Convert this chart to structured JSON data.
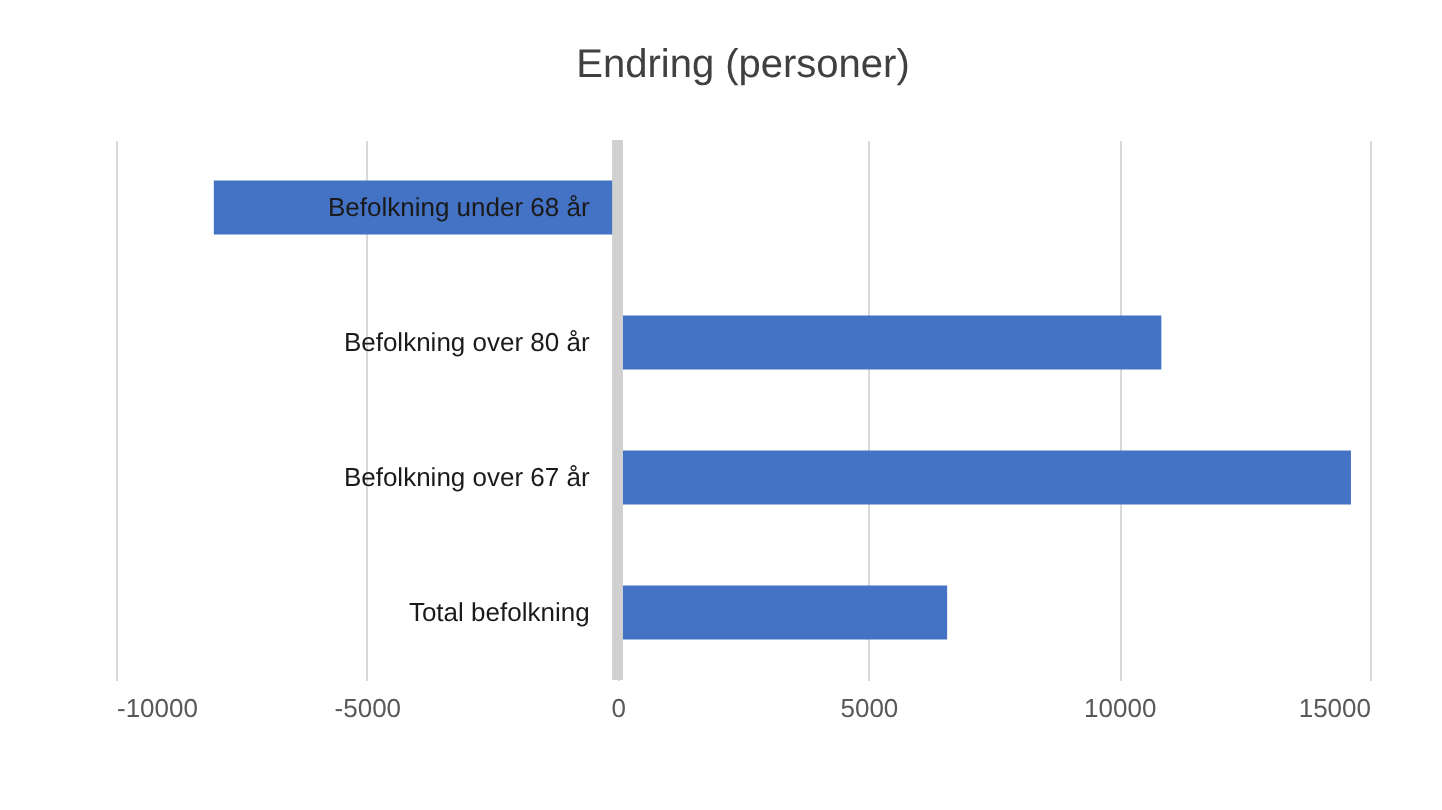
{
  "chart_data": {
    "type": "bar",
    "orientation": "horizontal",
    "title": "Endring (personer)",
    "categories": [
      "Befolkning under 68 år",
      "Befolkning over 80 år",
      "Befolkning over 67 år",
      "Total befolkning"
    ],
    "values": [
      -8050,
      10840,
      14620,
      6570
    ],
    "color": "#4472c4",
    "xlim": [
      -10000,
      15000
    ],
    "xticks": [
      -10000,
      -5000,
      0,
      5000,
      10000,
      15000
    ],
    "grid": "x"
  }
}
